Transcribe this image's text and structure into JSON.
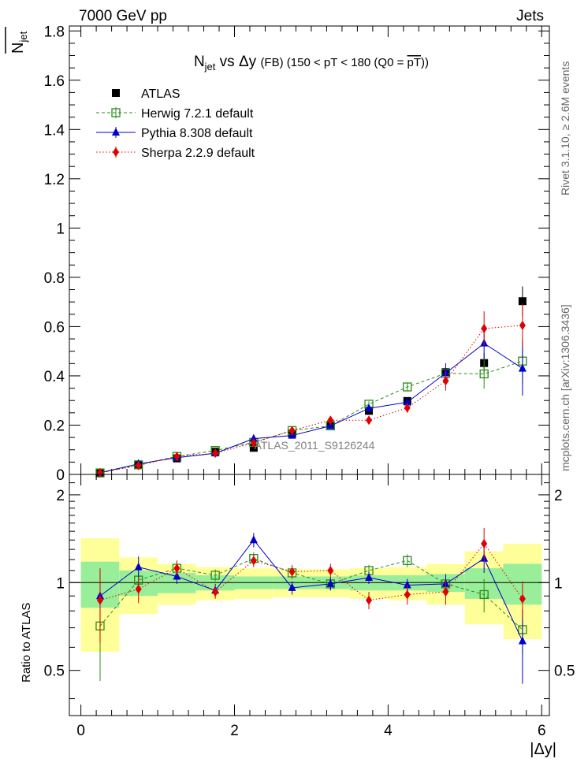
{
  "header": {
    "left": "7000 GeV pp",
    "right": "Jets"
  },
  "side": {
    "rivet": "Rivet 3.1.10, ≥ 2.6M events",
    "mcplots": "mcplots.cern.ch [arXiv:1306.3436]"
  },
  "chart_data": {
    "type": "scatter",
    "title": "N_jet vs Δy (FB) (150 < pT < 180 (Q0 = pT))",
    "title_parts": {
      "n": "N",
      "n_sub": "jet",
      "mid": " vs Δy ",
      "fb": "(FB)",
      "range": " (150 < pT < 180 (Q0 = ",
      "pt": "pT",
      "close": "))"
    },
    "ylabel_main": {
      "n": "N",
      "sub": "jet"
    },
    "ylabel_ratio": "Ratio to ATLAS",
    "xlabel": "|Δy|",
    "analysis_label": "ATLAS_2011_S9126244",
    "xlim": [
      -0.15,
      6.1
    ],
    "ylim_main": [
      0,
      1.82
    ],
    "ylim_ratio": [
      0.35,
      2.35
    ],
    "x_ticks": [
      "0",
      "2",
      "4",
      "6"
    ],
    "y_ticks_main": [
      "0",
      "0.2",
      "0.4",
      "0.6",
      "0.8",
      "1",
      "1.2",
      "1.4",
      "1.6",
      "1.8"
    ],
    "y_ticks_ratio": [
      "0.5",
      "1",
      "2"
    ],
    "legend_placement": "top-left",
    "x": [
      0.25,
      0.75,
      1.25,
      1.75,
      2.25,
      2.75,
      3.25,
      3.75,
      4.25,
      4.75,
      5.25,
      5.75
    ],
    "bin_edges": [
      0,
      0.5,
      1.0,
      1.5,
      2.0,
      2.5,
      3.0,
      3.5,
      4.0,
      4.5,
      5.0,
      5.5,
      6.0
    ],
    "band_inner": [
      0.18,
      0.1,
      0.08,
      0.06,
      0.05,
      0.05,
      0.05,
      0.06,
      0.06,
      0.07,
      0.12,
      0.16
    ],
    "band_outer": [
      0.42,
      0.22,
      0.16,
      0.13,
      0.12,
      0.11,
      0.11,
      0.12,
      0.13,
      0.16,
      0.28,
      0.36
    ],
    "series": [
      {
        "name": "ATLAS",
        "color": "#000000",
        "marker": "filled-square",
        "values": [
          0.008,
          0.038,
          0.065,
          0.092,
          0.108,
          0.165,
          0.2,
          0.258,
          0.298,
          0.415,
          0.452,
          0.703
        ],
        "errors": [
          0.003,
          0.004,
          0.005,
          0.006,
          0.006,
          0.008,
          0.009,
          0.012,
          0.014,
          0.02,
          0.04,
          0.06
        ]
      },
      {
        "name": "Herwig 7.2.1 default",
        "color": "#2a8c1a",
        "marker": "open-square",
        "line": "dashed",
        "values": [
          0.006,
          0.039,
          0.073,
          0.097,
          0.13,
          0.178,
          0.197,
          0.285,
          0.355,
          0.41,
          0.408,
          0.46
        ],
        "errors": [
          0.002,
          0.004,
          0.005,
          0.006,
          0.007,
          0.008,
          0.009,
          0.012,
          0.015,
          0.025,
          0.06,
          0.09
        ]
      },
      {
        "name": "Pythia 8.308 default",
        "color": "#0000cc",
        "marker": "triangle",
        "line": "solid",
        "values": [
          0.007,
          0.043,
          0.068,
          0.086,
          0.145,
          0.158,
          0.197,
          0.268,
          0.293,
          0.411,
          0.532,
          0.43
        ],
        "errors": [
          0.002,
          0.004,
          0.005,
          0.006,
          0.007,
          0.008,
          0.009,
          0.012,
          0.014,
          0.04,
          0.06,
          0.11
        ]
      },
      {
        "name": "Sherpa 2.2.9 default",
        "color": "#e00000",
        "marker": "diamond",
        "line": "dotted",
        "values": [
          0.007,
          0.036,
          0.073,
          0.086,
          0.128,
          0.178,
          0.22,
          0.22,
          0.27,
          0.38,
          0.592,
          0.605
        ],
        "errors": [
          0.002,
          0.004,
          0.005,
          0.006,
          0.007,
          0.008,
          0.01,
          0.015,
          0.02,
          0.04,
          0.07,
          0.09
        ]
      }
    ],
    "ratios": {
      "Herwig 7.2.1 default": {
        "values": [
          0.71,
          1.02,
          1.12,
          1.06,
          1.21,
          1.08,
          0.99,
          1.1,
          1.19,
          0.99,
          0.91,
          0.69
        ],
        "errors": [
          0.25,
          0.1,
          0.07,
          0.05,
          0.06,
          0.05,
          0.05,
          0.05,
          0.06,
          0.06,
          0.12,
          0.12
        ]
      },
      "Pythia 8.308 default": {
        "values": [
          0.9,
          1.13,
          1.05,
          0.94,
          1.4,
          0.96,
          0.99,
          1.04,
          0.98,
          0.99,
          1.21,
          0.63
        ],
        "errors": [
          0.2,
          0.1,
          0.06,
          0.05,
          0.08,
          0.05,
          0.05,
          0.05,
          0.05,
          0.08,
          0.13,
          0.18
        ]
      },
      "Sherpa 2.2.9 default": {
        "values": [
          0.87,
          0.95,
          1.12,
          0.93,
          1.19,
          1.09,
          1.1,
          0.87,
          0.91,
          0.93,
          1.36,
          0.88
        ],
        "errors": [
          0.25,
          0.1,
          0.07,
          0.05,
          0.06,
          0.06,
          0.06,
          0.06,
          0.07,
          0.09,
          0.18,
          0.13
        ]
      }
    }
  }
}
